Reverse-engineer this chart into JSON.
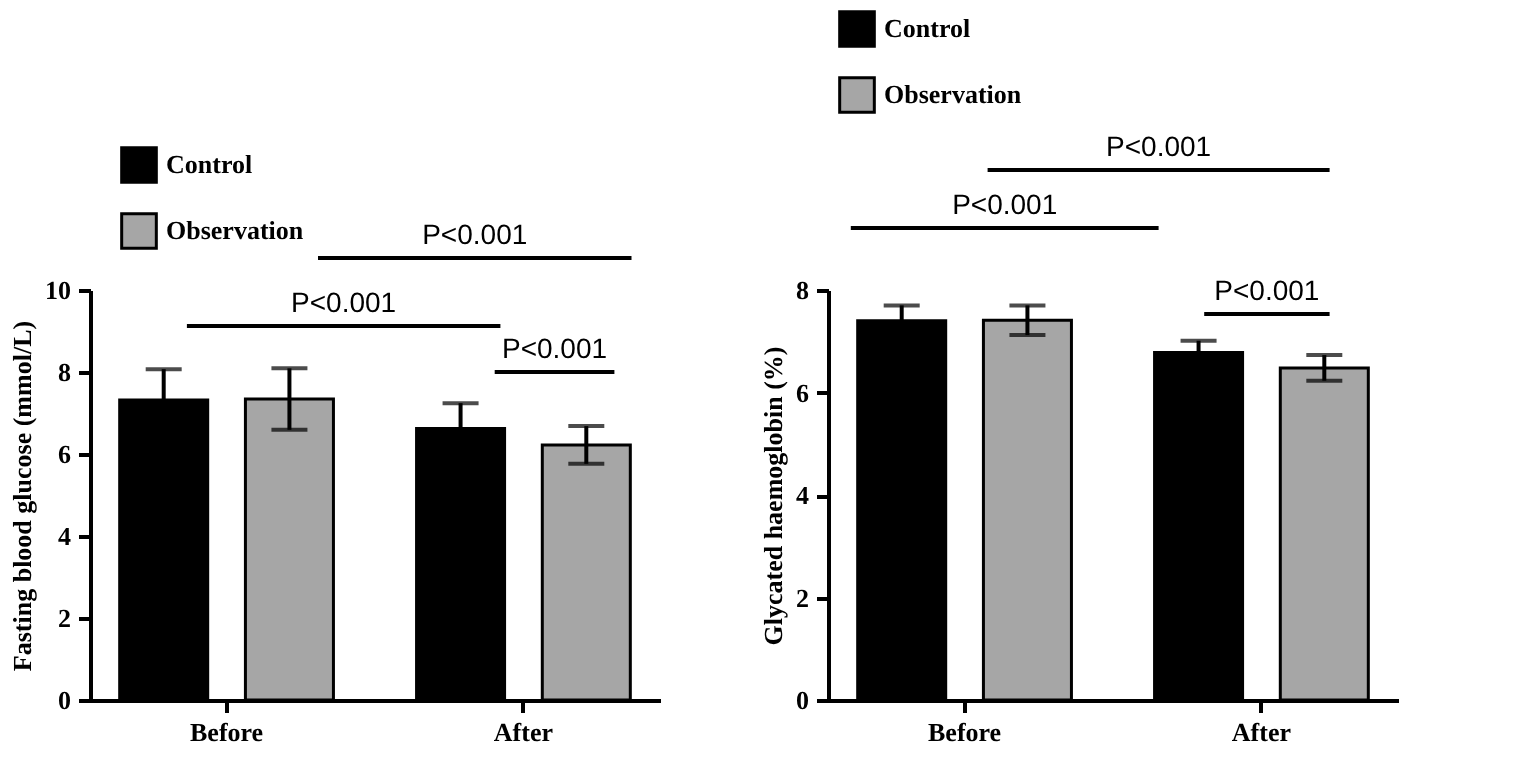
{
  "chart_data": [
    {
      "type": "bar",
      "categories": [
        "Before",
        "After"
      ],
      "ylabel": "Fasting blood glucose (mmol/L)",
      "ylim": [
        0,
        10
      ],
      "yticks": [
        0,
        2,
        4,
        6,
        8,
        10
      ],
      "legend": "top left",
      "series": [
        {
          "name": "Control",
          "color": "#000000",
          "values": [
            7.32,
            6.62
          ],
          "errors": [
            0.75,
            0.62
          ]
        },
        {
          "name": "Observation",
          "color": "#a6a6a6",
          "values": [
            7.34,
            6.22
          ],
          "errors": [
            0.75,
            0.46
          ]
        }
      ],
      "annotations": [
        "P<0.001",
        "P<0.001",
        "P<0.001"
      ]
    },
    {
      "type": "bar",
      "categories": [
        "Before",
        "After"
      ],
      "ylabel": "Glycated haemoglobin (%)",
      "ylim": [
        0,
        8
      ],
      "yticks": [
        0,
        2,
        4,
        6,
        8
      ],
      "legend": "top left",
      "series": [
        {
          "name": "Control",
          "color": "#000000",
          "values": [
            7.4,
            6.78
          ],
          "errors": [
            0.3,
            0.23
          ]
        },
        {
          "name": "Observation",
          "color": "#a6a6a6",
          "values": [
            7.41,
            6.48
          ],
          "errors": [
            0.29,
            0.25
          ]
        }
      ],
      "annotations": [
        "P<0.001",
        "P<0.001",
        "P<0.001"
      ]
    }
  ]
}
